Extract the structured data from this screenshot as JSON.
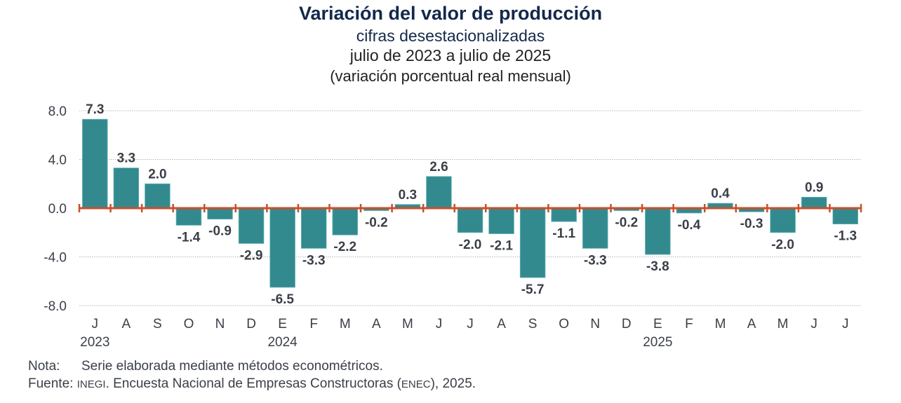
{
  "header": {
    "title": "Variación del valor de producción",
    "subtitle": "cifras desestacionalizadas",
    "period": "julio de 2023 a julio de 2025",
    "units": "(variación porcentual real mensual)"
  },
  "colors": {
    "bar": "#338a8e",
    "axis": "#c9502a",
    "text": "#3a3f47",
    "title": "#13294b",
    "grid": "#b8b8b8"
  },
  "chart_data": {
    "type": "bar",
    "title": "Variación del valor de producción",
    "subtitle": "cifras desestacionalizadas, julio de 2023 a julio de 2025 (variación porcentual real mensual)",
    "xlabel": "",
    "ylabel": "",
    "ylim": [
      -8.0,
      8.0
    ],
    "yticks": [
      "8.0",
      "4.0",
      "0.0",
      "-4.0",
      "-8.0"
    ],
    "ytick_values": [
      8,
      4,
      0,
      -4,
      -8
    ],
    "grid": true,
    "legend": "none",
    "categories": [
      "J",
      "A",
      "S",
      "O",
      "N",
      "D",
      "E",
      "F",
      "M",
      "A",
      "M",
      "J",
      "J",
      "A",
      "S",
      "O",
      "N",
      "D",
      "E",
      "F",
      "M",
      "A",
      "M",
      "J",
      "J"
    ],
    "year_labels": [
      {
        "index": 0,
        "label": "2023"
      },
      {
        "index": 6,
        "label": "2024"
      },
      {
        "index": 18,
        "label": "2025"
      }
    ],
    "values": [
      7.3,
      3.3,
      2.0,
      -1.4,
      -0.9,
      -2.9,
      -6.5,
      -3.3,
      -2.2,
      -0.2,
      0.3,
      2.6,
      -2.0,
      -2.1,
      -5.7,
      -1.1,
      -3.3,
      -0.2,
      -3.8,
      -0.4,
      0.4,
      -0.3,
      -2.0,
      0.9,
      -1.3
    ],
    "data_labels": [
      "7.3",
      "3.3",
      "2.0",
      "-1.4",
      "-0.9",
      "-2.9",
      "-6.5",
      "-3.3",
      "-2.2",
      "-0.2",
      "0.3",
      "2.6",
      "-2.0",
      "-2.1",
      "-5.7",
      "-1.1",
      "-3.3",
      "-0.2",
      "-3.8",
      "-0.4",
      "0.4",
      "-0.3",
      "-2.0",
      "0.9",
      "-1.3"
    ]
  },
  "footer": {
    "note_label": "Nota:",
    "note_text": "Serie elaborada mediante métodos econométricos.",
    "source_label": "Fuente:",
    "source_org": "INEGI",
    "source_text_1": ". Encuesta Nacional de Empresas Constructoras (",
    "source_abbr": "ENEC",
    "source_text_2": "), 2025."
  }
}
